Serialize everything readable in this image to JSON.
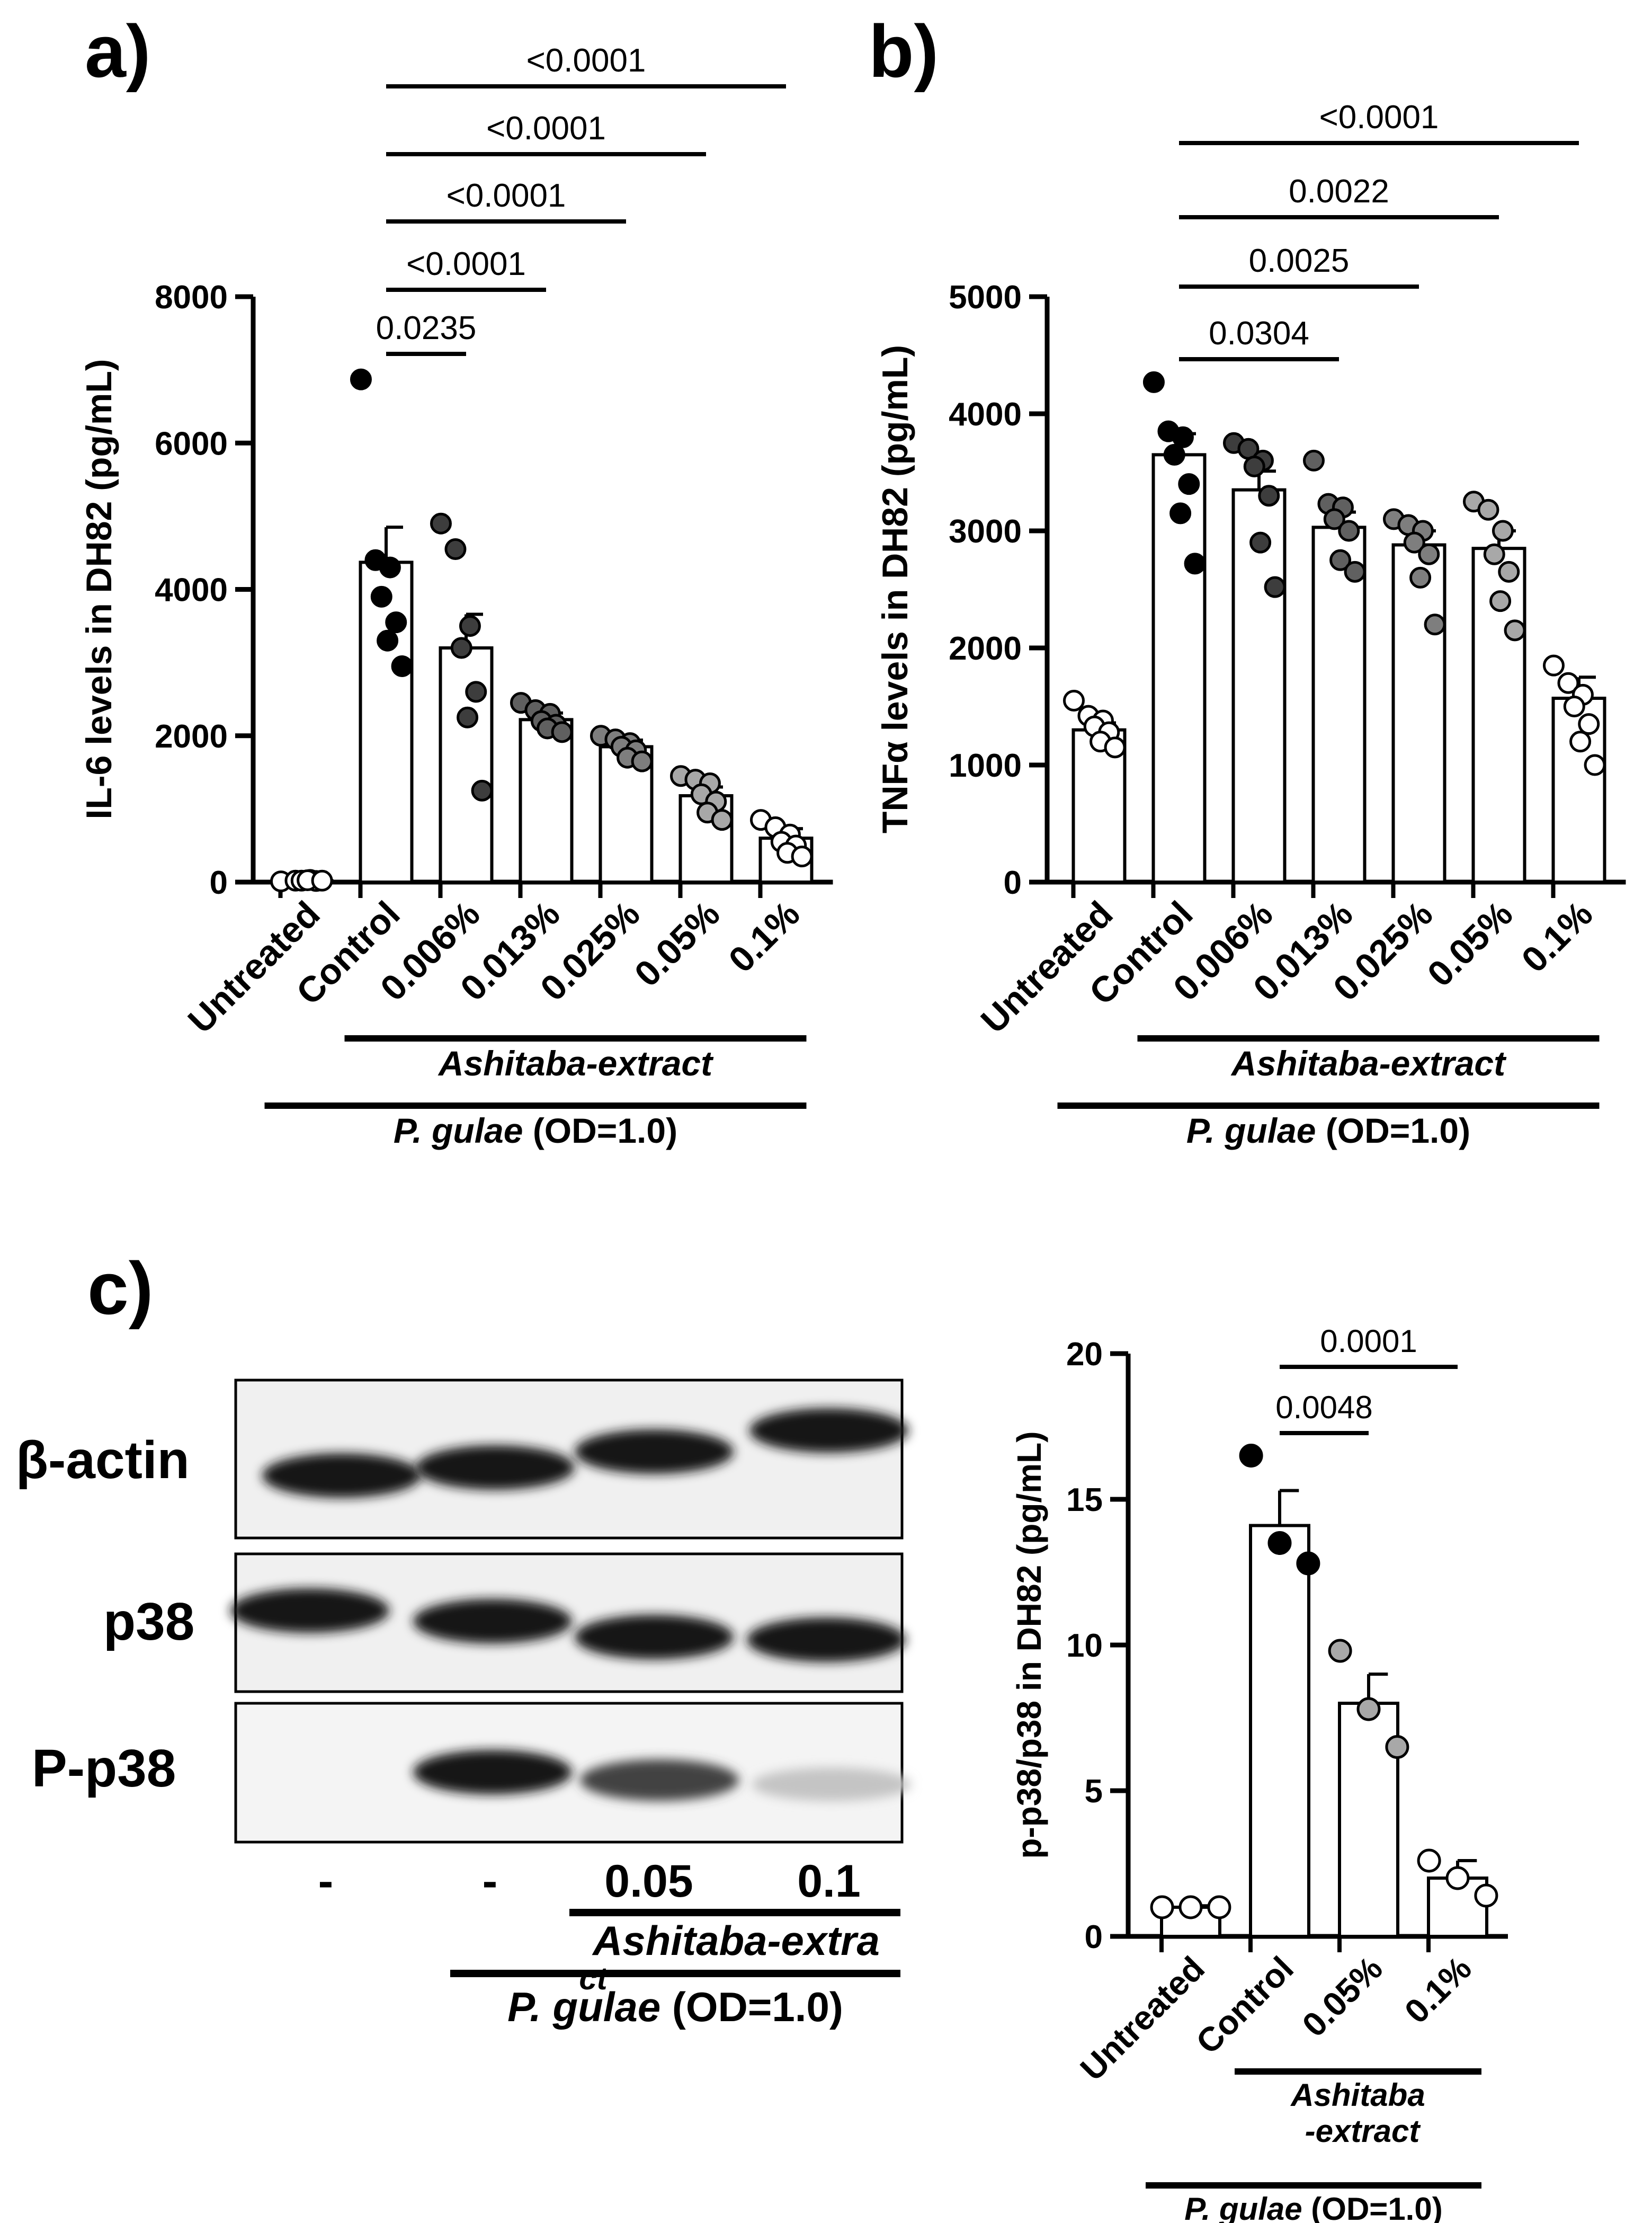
{
  "colors": {
    "untreated": "#ffffff",
    "control": "#000000",
    "ext_0.006": "#3d3d3d",
    "ext_0.013": "#606060",
    "ext_0.025": "#7e7e7e",
    "ext_0.05": "#a8a8a8",
    "ext_0.1": "#ffffff"
  },
  "chart_data": [
    {
      "panel_label": "a)",
      "type": "bar",
      "ylabel": "IL-6 levels in DH82 (pg/mL)",
      "ylim": [
        0,
        8000
      ],
      "yticks": [
        0,
        2000,
        4000,
        6000,
        8000
      ],
      "categories": [
        "Untreated",
        "Control",
        "0.006%",
        "0.013%",
        "0.025%",
        "0.05%",
        "0.1%"
      ],
      "values": [
        20,
        4370,
        3200,
        2220,
        1850,
        1180,
        600
      ],
      "sem": [
        10,
        480,
        460,
        90,
        90,
        120,
        130
      ],
      "points": [
        [
          10,
          20,
          30,
          20,
          15,
          25,
          20
        ],
        [
          6870,
          4400,
          4300,
          3900,
          3550,
          3300,
          2950
        ],
        [
          4900,
          4550,
          3500,
          3200,
          2600,
          2250,
          1250
        ],
        [
          2450,
          2350,
          2300,
          2200,
          2150,
          2100,
          2050
        ],
        [
          2000,
          1950,
          1900,
          1850,
          1800,
          1700,
          1650
        ],
        [
          1450,
          1400,
          1350,
          1200,
          1100,
          950,
          850
        ],
        [
          850,
          750,
          650,
          550,
          500,
          400,
          350
        ]
      ],
      "point_colors": [
        "untreated",
        "control",
        "ext_0.006",
        "ext_0.013",
        "ext_0.025",
        "ext_0.05",
        "ext_0.1"
      ],
      "comparisons": [
        {
          "from": 1,
          "to": 2,
          "label": "0.0235"
        },
        {
          "from": 1,
          "to": 3,
          "label": "<0.0001"
        },
        {
          "from": 1,
          "to": 4,
          "label": "<0.0001"
        },
        {
          "from": 1,
          "to": 5,
          "label": "<0.0001"
        },
        {
          "from": 1,
          "to": 6,
          "label": "<0.0001"
        }
      ],
      "group_labels": [
        {
          "label": "Ashitaba-extract",
          "from": 1,
          "to": 6
        },
        {
          "label_italic": "P. gulae",
          "label_rest": " (OD=1.0)",
          "from": 0,
          "to": 6
        }
      ]
    },
    {
      "panel_label": "b)",
      "type": "bar",
      "ylabel": "TNFα levels in DH82 (pg/mL)",
      "ylim": [
        0,
        5000
      ],
      "yticks": [
        0,
        1000,
        2000,
        3000,
        4000,
        5000
      ],
      "categories": [
        "Untreated",
        "Control",
        "0.006%",
        "0.013%",
        "0.025%",
        "0.05%",
        "0.1%"
      ],
      "values": [
        1300,
        3650,
        3350,
        3030,
        2880,
        2850,
        1570
      ],
      "sem": [
        60,
        180,
        160,
        130,
        120,
        150,
        180
      ],
      "points": [
        [
          1550,
          1420,
          1380,
          1330,
          1280,
          1200,
          1150
        ],
        [
          4270,
          3850,
          3800,
          3650,
          3400,
          3150,
          2720
        ],
        [
          3750,
          3700,
          3600,
          3550,
          3300,
          2900,
          2520
        ],
        [
          3600,
          3230,
          3200,
          3100,
          3000,
          2750,
          2650
        ],
        [
          3100,
          3050,
          3000,
          2900,
          2800,
          2600,
          2200
        ],
        [
          3250,
          3180,
          3000,
          2800,
          2650,
          2400,
          2150
        ],
        [
          1850,
          1700,
          1600,
          1500,
          1350,
          1200,
          1000
        ]
      ],
      "point_colors": [
        "untreated",
        "control",
        "ext_0.006",
        "ext_0.013",
        "ext_0.025",
        "ext_0.05",
        "ext_0.1"
      ],
      "comparisons": [
        {
          "from": 1,
          "to": 3,
          "label": "0.0304"
        },
        {
          "from": 1,
          "to": 4,
          "label": "0.0025"
        },
        {
          "from": 1,
          "to": 5,
          "label": "0.0022"
        },
        {
          "from": 1,
          "to": 6,
          "label": "<0.0001"
        }
      ],
      "group_labels": [
        {
          "label": "Ashitaba-extract",
          "from": 1,
          "to": 6
        },
        {
          "label_italic": "P. gulae",
          "label_rest": " (OD=1.0)",
          "from": 0,
          "to": 6
        }
      ]
    },
    {
      "type": "bar",
      "ylabel": "p-p38/p38 in DH82 (pg/mL)",
      "ylim": [
        0,
        20
      ],
      "yticks": [
        0,
        5,
        10,
        15,
        20
      ],
      "categories": [
        "Untreated",
        "Control",
        "0.05%",
        "0.1%"
      ],
      "values": [
        1,
        14.1,
        8.0,
        2.0
      ],
      "sem": [
        0.05,
        1.2,
        1.0,
        0.6
      ],
      "points": [
        [
          1,
          1,
          1
        ],
        [
          16.5,
          13.5,
          12.8
        ],
        [
          9.8,
          7.8,
          6.5
        ],
        [
          2.6,
          2.0,
          1.4
        ]
      ],
      "point_colors": [
        "untreated",
        "control",
        "ext_0.05",
        "ext_0.1"
      ],
      "comparisons": [
        {
          "from": 1,
          "to": 2,
          "label": "0.0048"
        },
        {
          "from": 1,
          "to": 3,
          "label": "0.0001"
        }
      ],
      "group_labels": [
        {
          "label_lines": [
            "Ashitaba",
            "-extract"
          ],
          "from": 1,
          "to": 3
        },
        {
          "label_italic": "P. gulae",
          "label_rest": " (OD=1.0)",
          "from": 0,
          "to": 3
        }
      ]
    }
  ],
  "blot": {
    "panel_label": "c)",
    "rows": [
      {
        "label": "β-actin",
        "intensities": [
          1,
          1,
          1,
          1
        ]
      },
      {
        "label": "p38",
        "intensities": [
          1,
          1,
          1,
          1
        ]
      },
      {
        "label": "P-p38",
        "intensities": [
          0,
          1,
          0.8,
          0.25
        ]
      }
    ],
    "lane_labels": [
      "-",
      "-",
      "0.05",
      "0.1"
    ],
    "extract_label": "Ashitaba-extra",
    "extract_label_overflow": "ct",
    "pgulae_italic": "P. gulae",
    "pgulae_rest": " (OD=1.0)"
  }
}
